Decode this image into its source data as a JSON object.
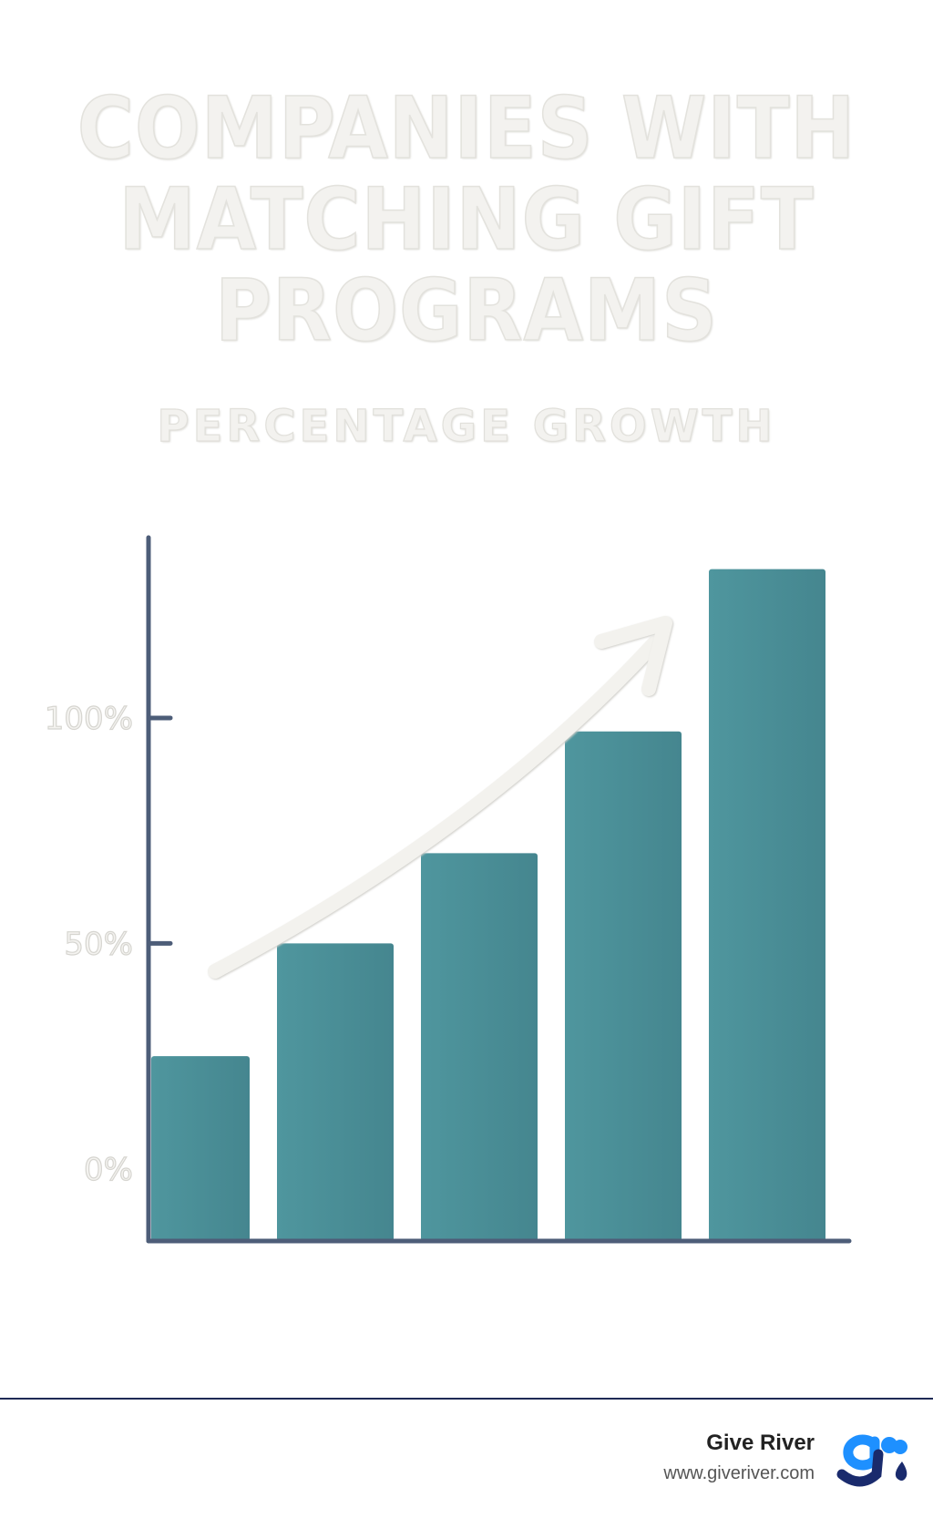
{
  "chart_data": {
    "type": "bar",
    "title_lines": [
      "COMPANIES WITH",
      "MATCHING GIFT",
      "PROGRAMS"
    ],
    "subtitle": "PERCENTAGE GROWTH",
    "categories": [
      "",
      "",
      "",
      "",
      ""
    ],
    "values": [
      25,
      50,
      70,
      97,
      133
    ],
    "ylim": [
      -16,
      140
    ],
    "yticks": [
      {
        "value": 0,
        "label": "0%"
      },
      {
        "value": 50,
        "label": "50%"
      },
      {
        "value": 100,
        "label": "100%"
      }
    ],
    "trend_arrow": true,
    "grid": false,
    "bar_color": "#4a8e96",
    "axis_color": "#4d5d78",
    "arrow_color": "#f3f2ee"
  },
  "footer": {
    "brand_name": "Give River",
    "url": "www.giveriver.com",
    "logo_icon": "give-river-logo-icon",
    "logo_colors": [
      "#1e90ff",
      "#1a2b6d"
    ]
  }
}
